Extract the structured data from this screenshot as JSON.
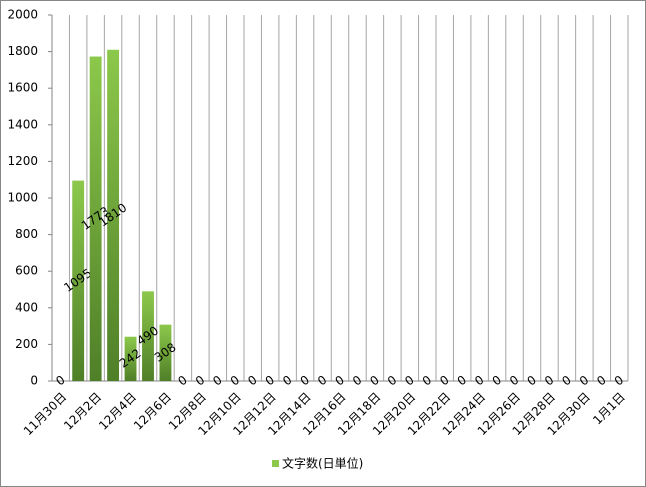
{
  "chart_data": {
    "type": "bar",
    "categories": [
      "11月30日",
      null,
      "12月2日",
      null,
      "12月4日",
      null,
      "12月6日",
      null,
      "12月8日",
      null,
      "12月10日",
      null,
      "12月12日",
      null,
      "12月14日",
      null,
      "12月16日",
      null,
      "12月18日",
      null,
      "12月20日",
      null,
      "12月22日",
      null,
      "12月24日",
      null,
      "12月26日",
      null,
      "12月28日",
      null,
      "12月30日",
      null,
      "1月1日"
    ],
    "series": [
      {
        "name": "文字数(日単位)",
        "color": "#8cc84b",
        "values": [
          0,
          1095,
          1773,
          1810,
          242,
          490,
          308,
          0,
          0,
          0,
          0,
          0,
          0,
          0,
          0,
          0,
          0,
          0,
          0,
          0,
          0,
          0,
          0,
          0,
          0,
          0,
          0,
          0,
          0,
          0,
          0,
          0,
          0
        ]
      }
    ],
    "ylim": [
      0,
      2000
    ],
    "yticks": [
      0,
      200,
      400,
      600,
      800,
      1000,
      1200,
      1400,
      1600,
      1800,
      2000
    ],
    "grid": "x",
    "legend": "bottom"
  }
}
